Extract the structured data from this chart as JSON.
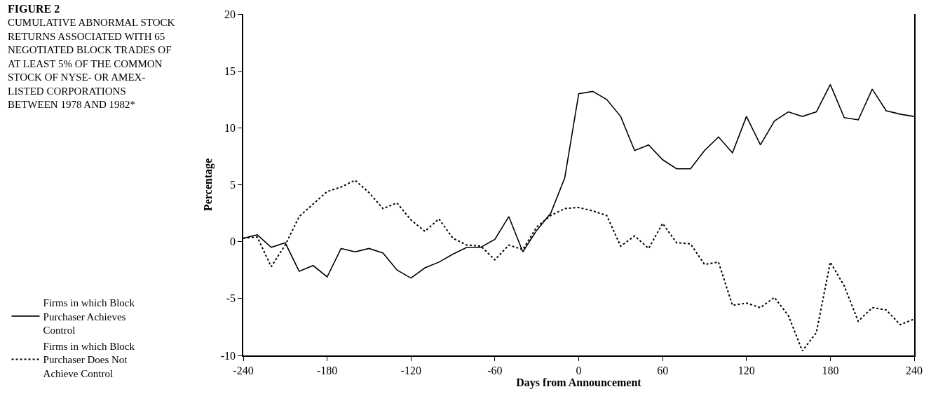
{
  "chart_data": {
    "type": "line",
    "title": "FIGURE 2",
    "subtitle": "CUMULATIVE ABNORMAL STOCK RETURNS ASSOCIATED WITH 65 NEGOTIATED BLOCK TRADES OF AT LEAST 5% OF THE COMMON STOCK OF NYSE- OR AMEX-LISTED CORPORATIONS BETWEEN 1978 AND 1982*",
    "xlabel": "Days from Announcement",
    "ylabel": "Percentage",
    "x": [
      -240,
      -230,
      -220,
      -210,
      -200,
      -190,
      -180,
      -170,
      -160,
      -150,
      -140,
      -130,
      -120,
      -110,
      -100,
      -90,
      -80,
      -70,
      -60,
      -50,
      -40,
      -30,
      -20,
      -10,
      0,
      10,
      20,
      30,
      40,
      50,
      60,
      70,
      80,
      90,
      100,
      110,
      120,
      130,
      140,
      150,
      160,
      170,
      180,
      190,
      200,
      210,
      220,
      230,
      240
    ],
    "series": [
      {
        "name": "Firms in which Block Purchaser Achieves Control",
        "color": "#000000",
        "line_style": "solid",
        "values": [
          0.3,
          0.6,
          -0.5,
          -0.1,
          -2.6,
          -2.1,
          -3.1,
          -0.6,
          -0.9,
          -0.6,
          -1.0,
          -2.5,
          -3.2,
          -2.3,
          -1.8,
          -1.1,
          -0.5,
          -0.5,
          0.2,
          2.2,
          -0.9,
          1.0,
          2.5,
          5.6,
          13.0,
          13.2,
          12.5,
          11.0,
          8.0,
          8.5,
          7.2,
          6.4,
          6.4,
          8.0,
          9.2,
          7.8,
          11.0,
          8.5,
          10.6,
          11.4,
          11.0,
          11.4,
          13.8,
          10.9,
          10.7,
          13.4,
          11.5,
          11.2,
          11.0
        ]
      },
      {
        "name": "Firms in which Block Purchaser Does Not Achieve Control",
        "color": "#000000",
        "line_style": "dotted",
        "values": [
          0.3,
          0.4,
          -2.2,
          -0.3,
          2.2,
          3.3,
          4.4,
          4.8,
          5.4,
          4.3,
          2.9,
          3.4,
          1.9,
          0.9,
          2.0,
          0.3,
          -0.3,
          -0.4,
          -1.6,
          -0.3,
          -0.7,
          1.3,
          2.3,
          2.9,
          3.0,
          2.7,
          2.3,
          -0.4,
          0.5,
          -0.6,
          1.6,
          -0.1,
          -0.2,
          -2.0,
          -1.8,
          -5.6,
          -5.4,
          -5.8,
          -4.9,
          -6.5,
          -9.6,
          -8.0,
          -1.8,
          -3.9,
          -7.0,
          -5.8,
          -6.0,
          -7.3,
          -6.8
        ]
      }
    ],
    "xlim": [
      -240,
      240
    ],
    "xticks": [
      -240,
      -180,
      -120,
      -60,
      0,
      60,
      120,
      180,
      240
    ],
    "ylim": [
      -10,
      20
    ],
    "yticks": [
      -10,
      -5,
      0,
      5,
      10,
      15,
      20
    ],
    "legend": "bottom left",
    "marker": "none"
  }
}
